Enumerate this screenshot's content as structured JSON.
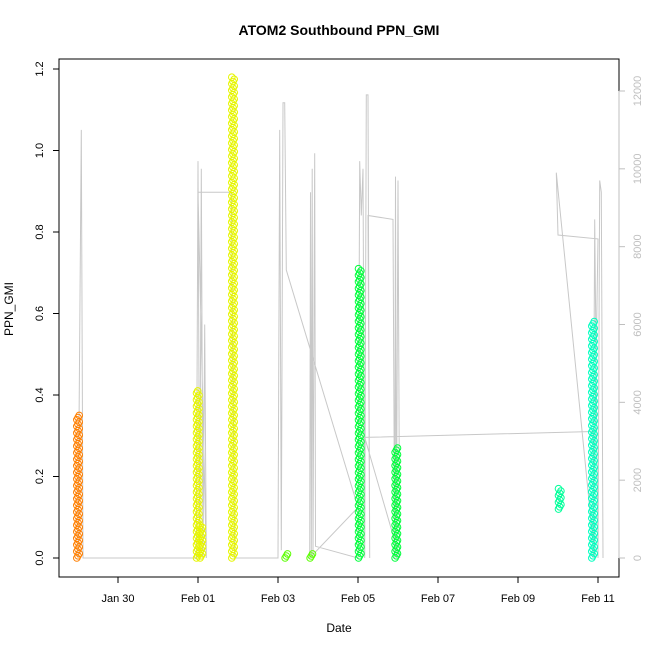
{
  "chart_data": {
    "type": "scatter",
    "title": "ATOM2 Southbound PPN_GMI",
    "xlabel": "Date",
    "ylabel": "PPN_GMI",
    "xlim": [
      "2024-01-28T12:00",
      "2024-02-11T12:00"
    ],
    "ylim": [
      0,
      1.2
    ],
    "y2lim": [
      0,
      12000
    ],
    "x_ticks": [
      {
        "label": "Jan 30",
        "date": "2024-01-30T00:00"
      },
      {
        "label": "Feb 01",
        "date": "2024-02-01T00:00"
      },
      {
        "label": "Feb 03",
        "date": "2024-02-03T00:00"
      },
      {
        "label": "Feb 05",
        "date": "2024-02-05T00:00"
      },
      {
        "label": "Feb 07",
        "date": "2024-02-07T00:00"
      },
      {
        "label": "Feb 09",
        "date": "2024-02-09T00:00"
      },
      {
        "label": "Feb 11",
        "date": "2024-02-11T00:00"
      }
    ],
    "y_ticks": [
      "0.0",
      "0.2",
      "0.4",
      "0.6",
      "0.8",
      "1.0",
      "1.2"
    ],
    "y2_ticks": [
      "0",
      "2000",
      "4000",
      "6000",
      "8000",
      "10000",
      "12000"
    ],
    "grid": false,
    "point_series": [
      {
        "color": "#FF7F00",
        "points": [
          {
            "date": "2024-01-29T00:00",
            "lo": 0.0,
            "hi": 0.35
          }
        ]
      },
      {
        "color": "#E6F500",
        "points": [
          {
            "date": "2024-01-31T23:50",
            "lo": 0.0,
            "hi": 0.41
          },
          {
            "date": "2024-02-01T02:00",
            "lo": 0.0,
            "hi": 0.08
          },
          {
            "date": "2024-02-01T21:00",
            "lo": 0.0,
            "hi": 1.18
          }
        ]
      },
      {
        "color": "#5AFF00",
        "points": [
          {
            "date": "2024-02-03T05:00",
            "lo": 0.0,
            "hi": 0.01
          },
          {
            "date": "2024-02-03T20:00",
            "lo": 0.0,
            "hi": 0.01
          }
        ]
      },
      {
        "color": "#00FF3C",
        "points": [
          {
            "date": "2024-02-05T01:00",
            "lo": 0.0,
            "hi": 0.71
          },
          {
            "date": "2024-02-05T23:00",
            "lo": 0.0,
            "hi": 0.27
          }
        ]
      },
      {
        "color": "#00FF9A",
        "points": [
          {
            "date": "2024-02-10T01:00",
            "lo": 0.12,
            "hi": 0.17
          }
        ]
      },
      {
        "color": "#00FFC0",
        "points": [
          {
            "date": "2024-02-10T21:00",
            "lo": 0.0,
            "hi": 0.58
          }
        ]
      }
    ],
    "secondary_line": {
      "color": "#c8c8c8",
      "axis": "right",
      "points": [
        [
          "2024-01-29T00:00",
          0
        ],
        [
          "2024-01-29T02:00",
          11000
        ],
        [
          "2024-01-29T03:00",
          0
        ],
        [
          "2024-01-31T23:00",
          0
        ],
        [
          "2024-02-01T00:00",
          10200
        ],
        [
          "2024-02-01T01:00",
          0
        ],
        [
          "2024-02-01T02:00",
          10000
        ],
        [
          "2024-02-01T03:00",
          0
        ],
        [
          "2024-02-01T04:00",
          6000
        ],
        [
          "2024-02-01T05:00",
          0
        ],
        [
          "2024-02-01T00:00",
          9400
        ],
        [
          "2024-02-01T20:00",
          9400
        ],
        [
          "2024-02-01T22:00",
          0
        ],
        [
          "2024-02-03T00:00",
          0
        ],
        [
          "2024-02-03T01:00",
          11000
        ],
        [
          "2024-02-03T02:00",
          200
        ],
        [
          "2024-02-03T03:00",
          11700
        ],
        [
          "2024-02-03T04:00",
          11700
        ],
        [
          "2024-02-03T05:00",
          7400
        ],
        [
          "2024-02-05T00:00",
          1300
        ],
        [
          "2024-02-03T19:00",
          0
        ],
        [
          "2024-02-03T19:30",
          9400
        ],
        [
          "2024-02-03T20:00",
          0
        ],
        [
          "2024-02-03T20:30",
          10000
        ],
        [
          "2024-02-03T21:00",
          0
        ],
        [
          "2024-02-03T22:00",
          10400
        ],
        [
          "2024-02-03T22:30",
          300
        ],
        [
          "2024-02-05T00:00",
          0
        ],
        [
          "2024-02-05T01:00",
          10200
        ],
        [
          "2024-02-05T02:00",
          8800
        ],
        [
          "2024-02-05T03:00",
          10000
        ],
        [
          "2024-02-05T04:00",
          0
        ],
        [
          "2024-02-05T05:00",
          11900
        ],
        [
          "2024-02-05T06:00",
          11900
        ],
        [
          "2024-02-05T07:00",
          0
        ],
        [
          "2024-02-05T06:00",
          8800
        ],
        [
          "2024-02-05T21:00",
          8700
        ],
        [
          "2024-02-05T22:00",
          0
        ],
        [
          "2024-02-05T22:30",
          9800
        ],
        [
          "2024-02-05T23:00",
          0
        ],
        [
          "2024-02-06T00:00",
          9700
        ],
        [
          "2024-02-06T01:00",
          0
        ],
        [
          "2024-02-05T04:00",
          3100
        ],
        [
          "2024-02-10T21:00",
          3250
        ],
        [
          "2024-02-10T22:00",
          0
        ],
        [
          "2024-02-09T23:00",
          9900
        ],
        [
          "2024-02-10T00:00",
          8300
        ],
        [
          "2024-02-11T00:00",
          8200
        ],
        [
          "2024-02-10T21:00",
          0
        ],
        [
          "2024-02-10T22:00",
          8700
        ],
        [
          "2024-02-11T00:00",
          0
        ],
        [
          "2024-02-11T01:00",
          9700
        ],
        [
          "2024-02-11T02:00",
          9400
        ],
        [
          "2024-02-11T03:00",
          0
        ]
      ]
    }
  }
}
